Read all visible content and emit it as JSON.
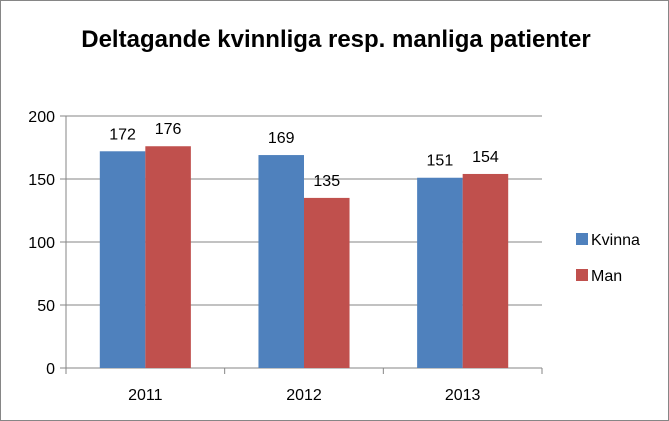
{
  "chart_data": {
    "type": "bar",
    "title": "Deltagande kvinnliga  resp. manliga patienter",
    "categories": [
      "2011",
      "2012",
      "2013"
    ],
    "series": [
      {
        "name": "Kvinna",
        "color": "#4F81BD",
        "values": [
          172,
          169,
          151
        ]
      },
      {
        "name": "Man",
        "color": "#C0504D",
        "values": [
          176,
          135,
          154
        ]
      }
    ],
    "yticks": [
      0,
      50,
      100,
      150,
      200
    ],
    "ylim": [
      0,
      200
    ],
    "xlabel": "",
    "ylabel": "",
    "grid": true,
    "data_labels": true,
    "legend_position": "right"
  }
}
